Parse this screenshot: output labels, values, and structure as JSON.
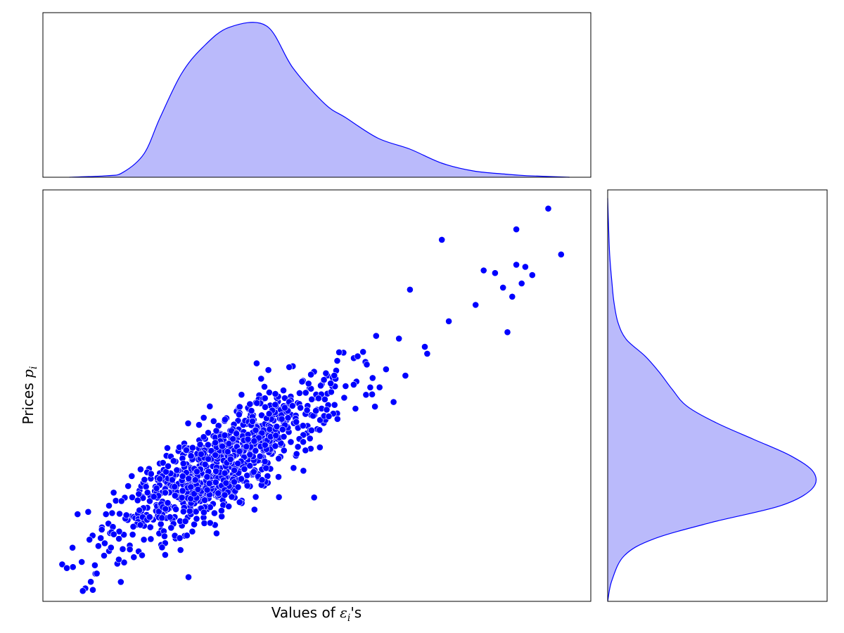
{
  "chart_data": {
    "type": "scatter",
    "subtype": "joint-plot with marginal KDE",
    "title": "",
    "xlabel": {
      "prefix": "Values of ",
      "symbol": "ε",
      "sub": "i",
      "suffix": "'s"
    },
    "ylabel": {
      "prefix": "Prices ",
      "symbol": "p",
      "sub": "i"
    },
    "xticks_shown": false,
    "yticks_shown": false,
    "grid": false,
    "xlim": [
      -1.7,
      8.6
    ],
    "ylim": [
      -1.7,
      8.2
    ],
    "point_color": "#0000ff",
    "kde_fill_color": "#babafb",
    "kde_line_color": "#0000ff",
    "marginal_x_kde": {
      "x": [
        -1.2,
        -0.5,
        -0.2,
        0.2,
        0.5,
        0.9,
        1.3,
        1.8,
        2.5,
        3.0,
        3.6,
        4.0,
        4.6,
        5.2,
        5.8,
        6.4,
        7.0,
        7.4,
        8.2
      ],
      "density": [
        0.0,
        0.01,
        0.03,
        0.15,
        0.38,
        0.66,
        0.83,
        0.96,
        0.97,
        0.7,
        0.47,
        0.38,
        0.25,
        0.18,
        0.09,
        0.04,
        0.02,
        0.01,
        0.0
      ]
    },
    "marginal_y_kde": {
      "y": [
        -1.7,
        -1.2,
        -0.6,
        -0.2,
        0.2,
        0.6,
        1.0,
        1.4,
        1.8,
        2.2,
        2.6,
        3.0,
        3.4,
        3.8,
        4.2,
        4.6,
        5.0,
        5.5,
        6.0,
        6.6,
        7.2,
        8.0
      ],
      "density": [
        0.0,
        0.02,
        0.08,
        0.22,
        0.5,
        0.83,
        0.98,
        0.99,
        0.88,
        0.7,
        0.52,
        0.38,
        0.31,
        0.25,
        0.18,
        0.09,
        0.05,
        0.03,
        0.02,
        0.01,
        0.005,
        0.0
      ]
    },
    "scatter": {
      "n_points": 1000,
      "x_mean": 1.3,
      "y_mean": 1.3,
      "slope": 0.78,
      "residual_sd": 0.55,
      "x_right_skew": true,
      "extreme_points": [
        [
          -1.25,
          -0.9
        ],
        [
          -0.95,
          -1.45
        ],
        [
          -0.8,
          -1.23
        ],
        [
          -0.55,
          -0.6
        ],
        [
          3.4,
          0.8
        ],
        [
          5.2,
          5.8
        ],
        [
          5.8,
          7.0
        ],
        [
          6.8,
          6.2
        ],
        [
          6.95,
          5.85
        ],
        [
          7.2,
          6.4
        ],
        [
          7.3,
          5.95
        ],
        [
          7.5,
          6.15
        ],
        [
          7.8,
          7.75
        ],
        [
          7.2,
          7.25
        ]
      ]
    }
  }
}
